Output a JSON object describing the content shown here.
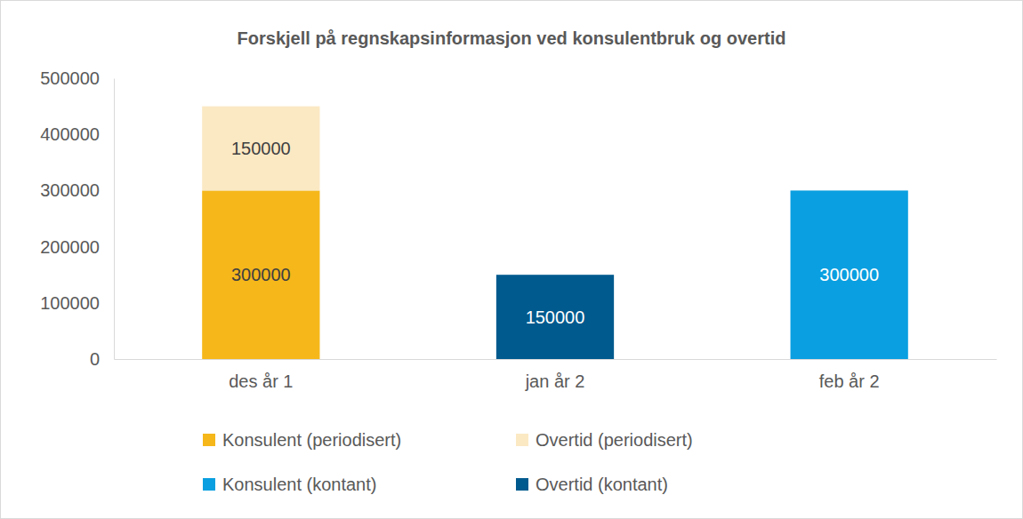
{
  "chart_data": {
    "type": "bar",
    "title": "Forskjell på regnskapsinformasjon ved konsulentbruk og overtid",
    "categories": [
      "des år 1",
      "jan år 2",
      "feb år 2"
    ],
    "series": [
      {
        "name": "Konsulent (periodisert)",
        "color": "#f5b71a",
        "values": [
          300000,
          null,
          null
        ]
      },
      {
        "name": "Overtid (periodisert)",
        "color": "#fbe9c4",
        "values": [
          150000,
          null,
          null
        ]
      },
      {
        "name": "Konsulent (kontant)",
        "color": "#0a9fe0",
        "values": [
          null,
          null,
          300000
        ]
      },
      {
        "name": "Overtid (kontant)",
        "color": "#005a8e",
        "values": [
          null,
          150000,
          null
        ]
      }
    ],
    "ylim": [
      0,
      500000
    ],
    "yticks": [
      0,
      100000,
      200000,
      300000,
      400000,
      500000
    ],
    "stacked": true,
    "data_labels": true,
    "grid": false,
    "legend": "bottom"
  }
}
